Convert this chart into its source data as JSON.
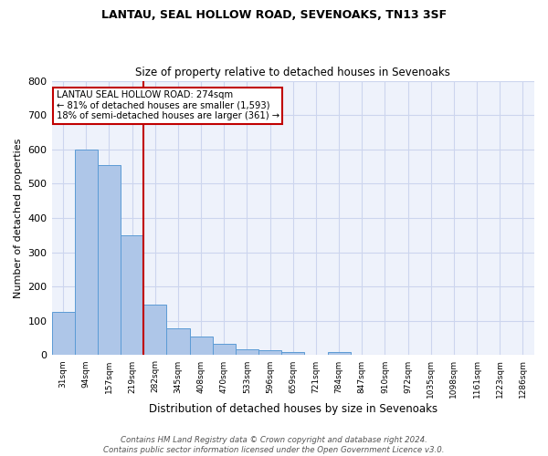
{
  "title1": "LANTAU, SEAL HOLLOW ROAD, SEVENOAKS, TN13 3SF",
  "title2": "Size of property relative to detached houses in Sevenoaks",
  "xlabel": "Distribution of detached houses by size in Sevenoaks",
  "ylabel": "Number of detached properties",
  "categories": [
    "31sqm",
    "94sqm",
    "157sqm",
    "219sqm",
    "282sqm",
    "345sqm",
    "408sqm",
    "470sqm",
    "533sqm",
    "596sqm",
    "659sqm",
    "721sqm",
    "784sqm",
    "847sqm",
    "910sqm",
    "972sqm",
    "1035sqm",
    "1098sqm",
    "1161sqm",
    "1223sqm",
    "1286sqm"
  ],
  "values": [
    125,
    600,
    555,
    350,
    148,
    78,
    55,
    32,
    16,
    14,
    10,
    0,
    8,
    0,
    0,
    0,
    0,
    0,
    0,
    0,
    0
  ],
  "bar_color": "#aec6e8",
  "bar_edge_color": "#5b9bd5",
  "vline_index": 4,
  "vline_color": "#c00000",
  "annotation_text": "LANTAU SEAL HOLLOW ROAD: 274sqm\n← 81% of detached houses are smaller (1,593)\n18% of semi-detached houses are larger (361) →",
  "annotation_box_color": "white",
  "annotation_box_edge": "#c00000",
  "ylim": [
    0,
    800
  ],
  "yticks": [
    0,
    100,
    200,
    300,
    400,
    500,
    600,
    700,
    800
  ],
  "footer": "Contains HM Land Registry data © Crown copyright and database right 2024.\nContains public sector information licensed under the Open Government Licence v3.0.",
  "bg_color": "#eef2fb",
  "grid_color": "#ccd5ee"
}
